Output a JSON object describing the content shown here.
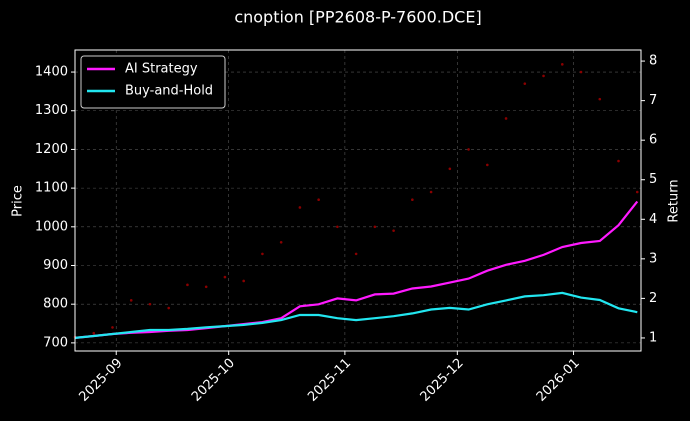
{
  "chart_data": {
    "type": "line",
    "title": "cnoption [PP2608-P-7600.DCE]",
    "y_label": "Price",
    "y2_label": "Return",
    "x": [
      0,
      5,
      10,
      15,
      20,
      25,
      30,
      35,
      40,
      45,
      50,
      55,
      60,
      65,
      70,
      75,
      80,
      85,
      90,
      95,
      100,
      105,
      110,
      115,
      120,
      125,
      130,
      135,
      140,
      145,
      150
    ],
    "xlim": [
      0,
      151
    ],
    "xticks": [
      {
        "value": 11,
        "label": "2025-09"
      },
      {
        "value": 41,
        "label": "2025-10"
      },
      {
        "value": 72,
        "label": "2025-11"
      },
      {
        "value": 102,
        "label": "2025-12"
      },
      {
        "value": 133,
        "label": "2026-01"
      }
    ],
    "ylim": [
      679,
      1457
    ],
    "yticks": [
      700,
      800,
      900,
      1000,
      1100,
      1200,
      1300,
      1400
    ],
    "y2lim": [
      0.67,
      8.28
    ],
    "y2ticks": [
      1,
      2,
      3,
      4,
      5,
      6,
      7,
      8
    ],
    "grid": true,
    "legend": "upper left",
    "series": [
      {
        "name": "Price",
        "type": "scatter",
        "color": "#8b0000",
        "legend": false,
        "values": [
          715,
          725,
          740,
          810,
          800,
          790,
          850,
          845,
          870,
          860,
          930,
          960,
          1050,
          1070,
          1000,
          930,
          1000,
          990,
          1070,
          1090,
          1150,
          1200,
          1160,
          1280,
          1370,
          1390,
          1420,
          1400,
          1330,
          1170,
          1090
        ]
      },
      {
        "name": "AI Strategy",
        "color": "#ff1aff",
        "axis": "y2",
        "values": [
          1.0,
          1.05,
          1.1,
          1.13,
          1.15,
          1.18,
          1.2,
          1.25,
          1.3,
          1.35,
          1.4,
          1.5,
          1.8,
          1.85,
          2.0,
          1.95,
          2.1,
          2.12,
          2.25,
          2.3,
          2.4,
          2.5,
          2.7,
          2.85,
          2.95,
          3.1,
          3.3,
          3.4,
          3.45,
          3.85,
          4.45
        ]
      },
      {
        "name": "Buy-and-Hold",
        "color": "#22e6f0",
        "axis": "y2",
        "values": [
          1.0,
          1.05,
          1.1,
          1.15,
          1.2,
          1.2,
          1.23,
          1.27,
          1.3,
          1.33,
          1.38,
          1.45,
          1.58,
          1.58,
          1.5,
          1.45,
          1.5,
          1.55,
          1.62,
          1.72,
          1.76,
          1.72,
          1.85,
          1.95,
          2.05,
          2.08,
          2.14,
          2.02,
          1.96,
          1.75,
          1.65
        ]
      }
    ]
  }
}
